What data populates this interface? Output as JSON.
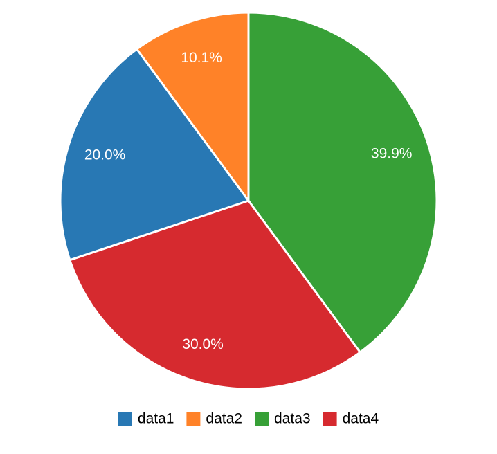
{
  "chart_data": {
    "type": "pie",
    "slices": [
      {
        "name": "data1",
        "value": 20.0,
        "label": "20.0%",
        "color": "#2878b4"
      },
      {
        "name": "data2",
        "value": 10.1,
        "label": "10.1%",
        "color": "#ff8228"
      },
      {
        "name": "data3",
        "value": 39.9,
        "label": "39.9%",
        "color": "#37a037"
      },
      {
        "name": "data4",
        "value": 30.0,
        "label": "30.0%",
        "color": "#d62a2f"
      }
    ],
    "legend": {
      "position": "bottom",
      "entries": [
        "data1",
        "data2",
        "data3",
        "data4"
      ]
    }
  }
}
